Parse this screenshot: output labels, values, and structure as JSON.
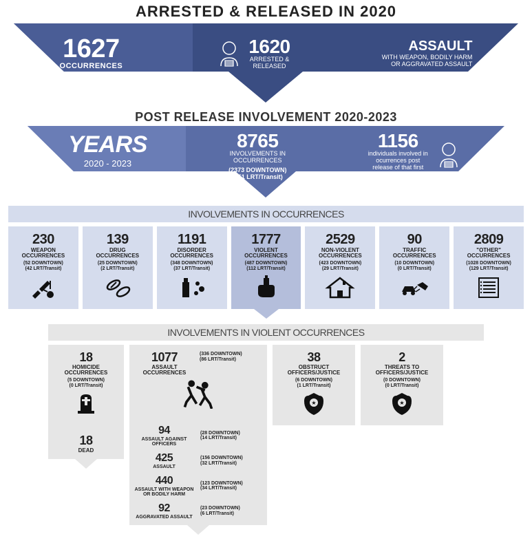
{
  "colors": {
    "blue_dark": "#3a4d82",
    "blue_mid": "#5a6da6",
    "blue_light": "#d5dced",
    "gray_light": "#e6e6e6"
  },
  "header": {
    "title": "ARRESTED & RELEASED IN 2020",
    "occ_num": "1627",
    "occ_lbl": "OCCURRENCES",
    "ar_num": "1620",
    "ar_lbl": "ARRESTED &\nRELEASED",
    "assault_title": "ASSAULT",
    "assault_sub": "WITH WEAPON, BODILY HARM\nOR AGGRAVATED ASSAULT"
  },
  "post": {
    "title": "POST RELEASE INVOLVEMENT 2020-2023",
    "years_lbl": "YEARS",
    "years_val": "2020 - 2023",
    "inv_num": "8765",
    "inv_lbl": "INVOLVEMENTS IN\nOCCURRENCES",
    "inv_sub": "(2373 DOWNTOWN)\n(351 LRT/Transit)",
    "ind_num": "1156",
    "ind_lbl": "individuals involved in\nocurrences post\nrelease of that first\ninvolvment"
  },
  "occ_section_title": "INVOLVEMENTS IN OCCURRENCES",
  "occ_cards": [
    {
      "num": "230",
      "lbl": "WEAPON\nOCCURRENCES",
      "sub": "(52 DOWNTOWN)\n(42 LRT/Transit)",
      "icon": "weapon"
    },
    {
      "num": "139",
      "lbl": "DRUG\nOCCURRENCES",
      "sub": "(25 DOWNTOWN)\n(2 LRT/Transit)",
      "icon": "pill"
    },
    {
      "num": "1191",
      "lbl": "DISORDER\nOCCURRENCES",
      "sub": "(348 DOWNTOWN)\n(37 LRT/Transit)",
      "icon": "spray"
    },
    {
      "num": "1777",
      "lbl": "VIOLENT\nOCCURRENCES",
      "sub": "(487 DOWNTOWN)\n(112 LRT/Transit)",
      "icon": "fist",
      "highlight": true
    },
    {
      "num": "2529",
      "lbl": "NON-VIOLENT\nOCCURRENCES",
      "sub": "(423 DOWNTOWN)\n(29 LRT/Transit)",
      "icon": "house"
    },
    {
      "num": "90",
      "lbl": "TRAFFIC\nOCCURRENCES",
      "sub": "(10 DOWNTOWN)\n(0 LRT/Transit)",
      "icon": "car"
    },
    {
      "num": "2809",
      "lbl": "\"OTHER\"\nOCCURRENCES",
      "sub": "(1028 DOWNTOWN)\n(129 LRT/Transit)",
      "icon": "list"
    }
  ],
  "vio_section_title": "INVOLVEMENTS IN VIOLENT OCCURRENCES",
  "homicide": {
    "num": "18",
    "lbl": "HOMICIDE\nOCCURRENCES",
    "sub": "(5 DOWNTOWN)\n(0 LRT/Transit)",
    "dead_num": "18",
    "dead_lbl": "DEAD"
  },
  "assault": {
    "num": "1077",
    "lbl": "ASSAULT\nOCCURRENCES",
    "head_sub": "(336 DOWNTOWN)\n(86 LRT/Transit)",
    "rows": [
      {
        "num": "94",
        "lbl": "ASSAULT AGAINST\nOFFICERS",
        "sub": "(28 DOWNTOWN)\n(14 LRT/Transit)"
      },
      {
        "num": "425",
        "lbl": "ASSAULT",
        "sub": "(156 DOWNTOWN)\n(32 LRT/Transit)"
      },
      {
        "num": "440",
        "lbl": "ASSAULT WITH WEAPON\nOR BODILY HARM",
        "sub": "(123 DOWNTOWN)\n(34 LRT/Transit)"
      },
      {
        "num": "92",
        "lbl": "AGGRAVATED ASSAULT",
        "sub": "(23 DOWNTOWN)\n(6 LRT/Transit)"
      }
    ]
  },
  "obstruct": {
    "num": "38",
    "lbl": "OBSTRUCT\nOFFICERS/JUSTICE",
    "sub": "(6 DOWNTOWN)\n(1 LRT/Transit)"
  },
  "threats": {
    "num": "2",
    "lbl": "THREATS TO\nOFFICERS/JUSTICE",
    "sub": "(0 DOWNTOWN)\n(0 LRT/Transit)"
  }
}
